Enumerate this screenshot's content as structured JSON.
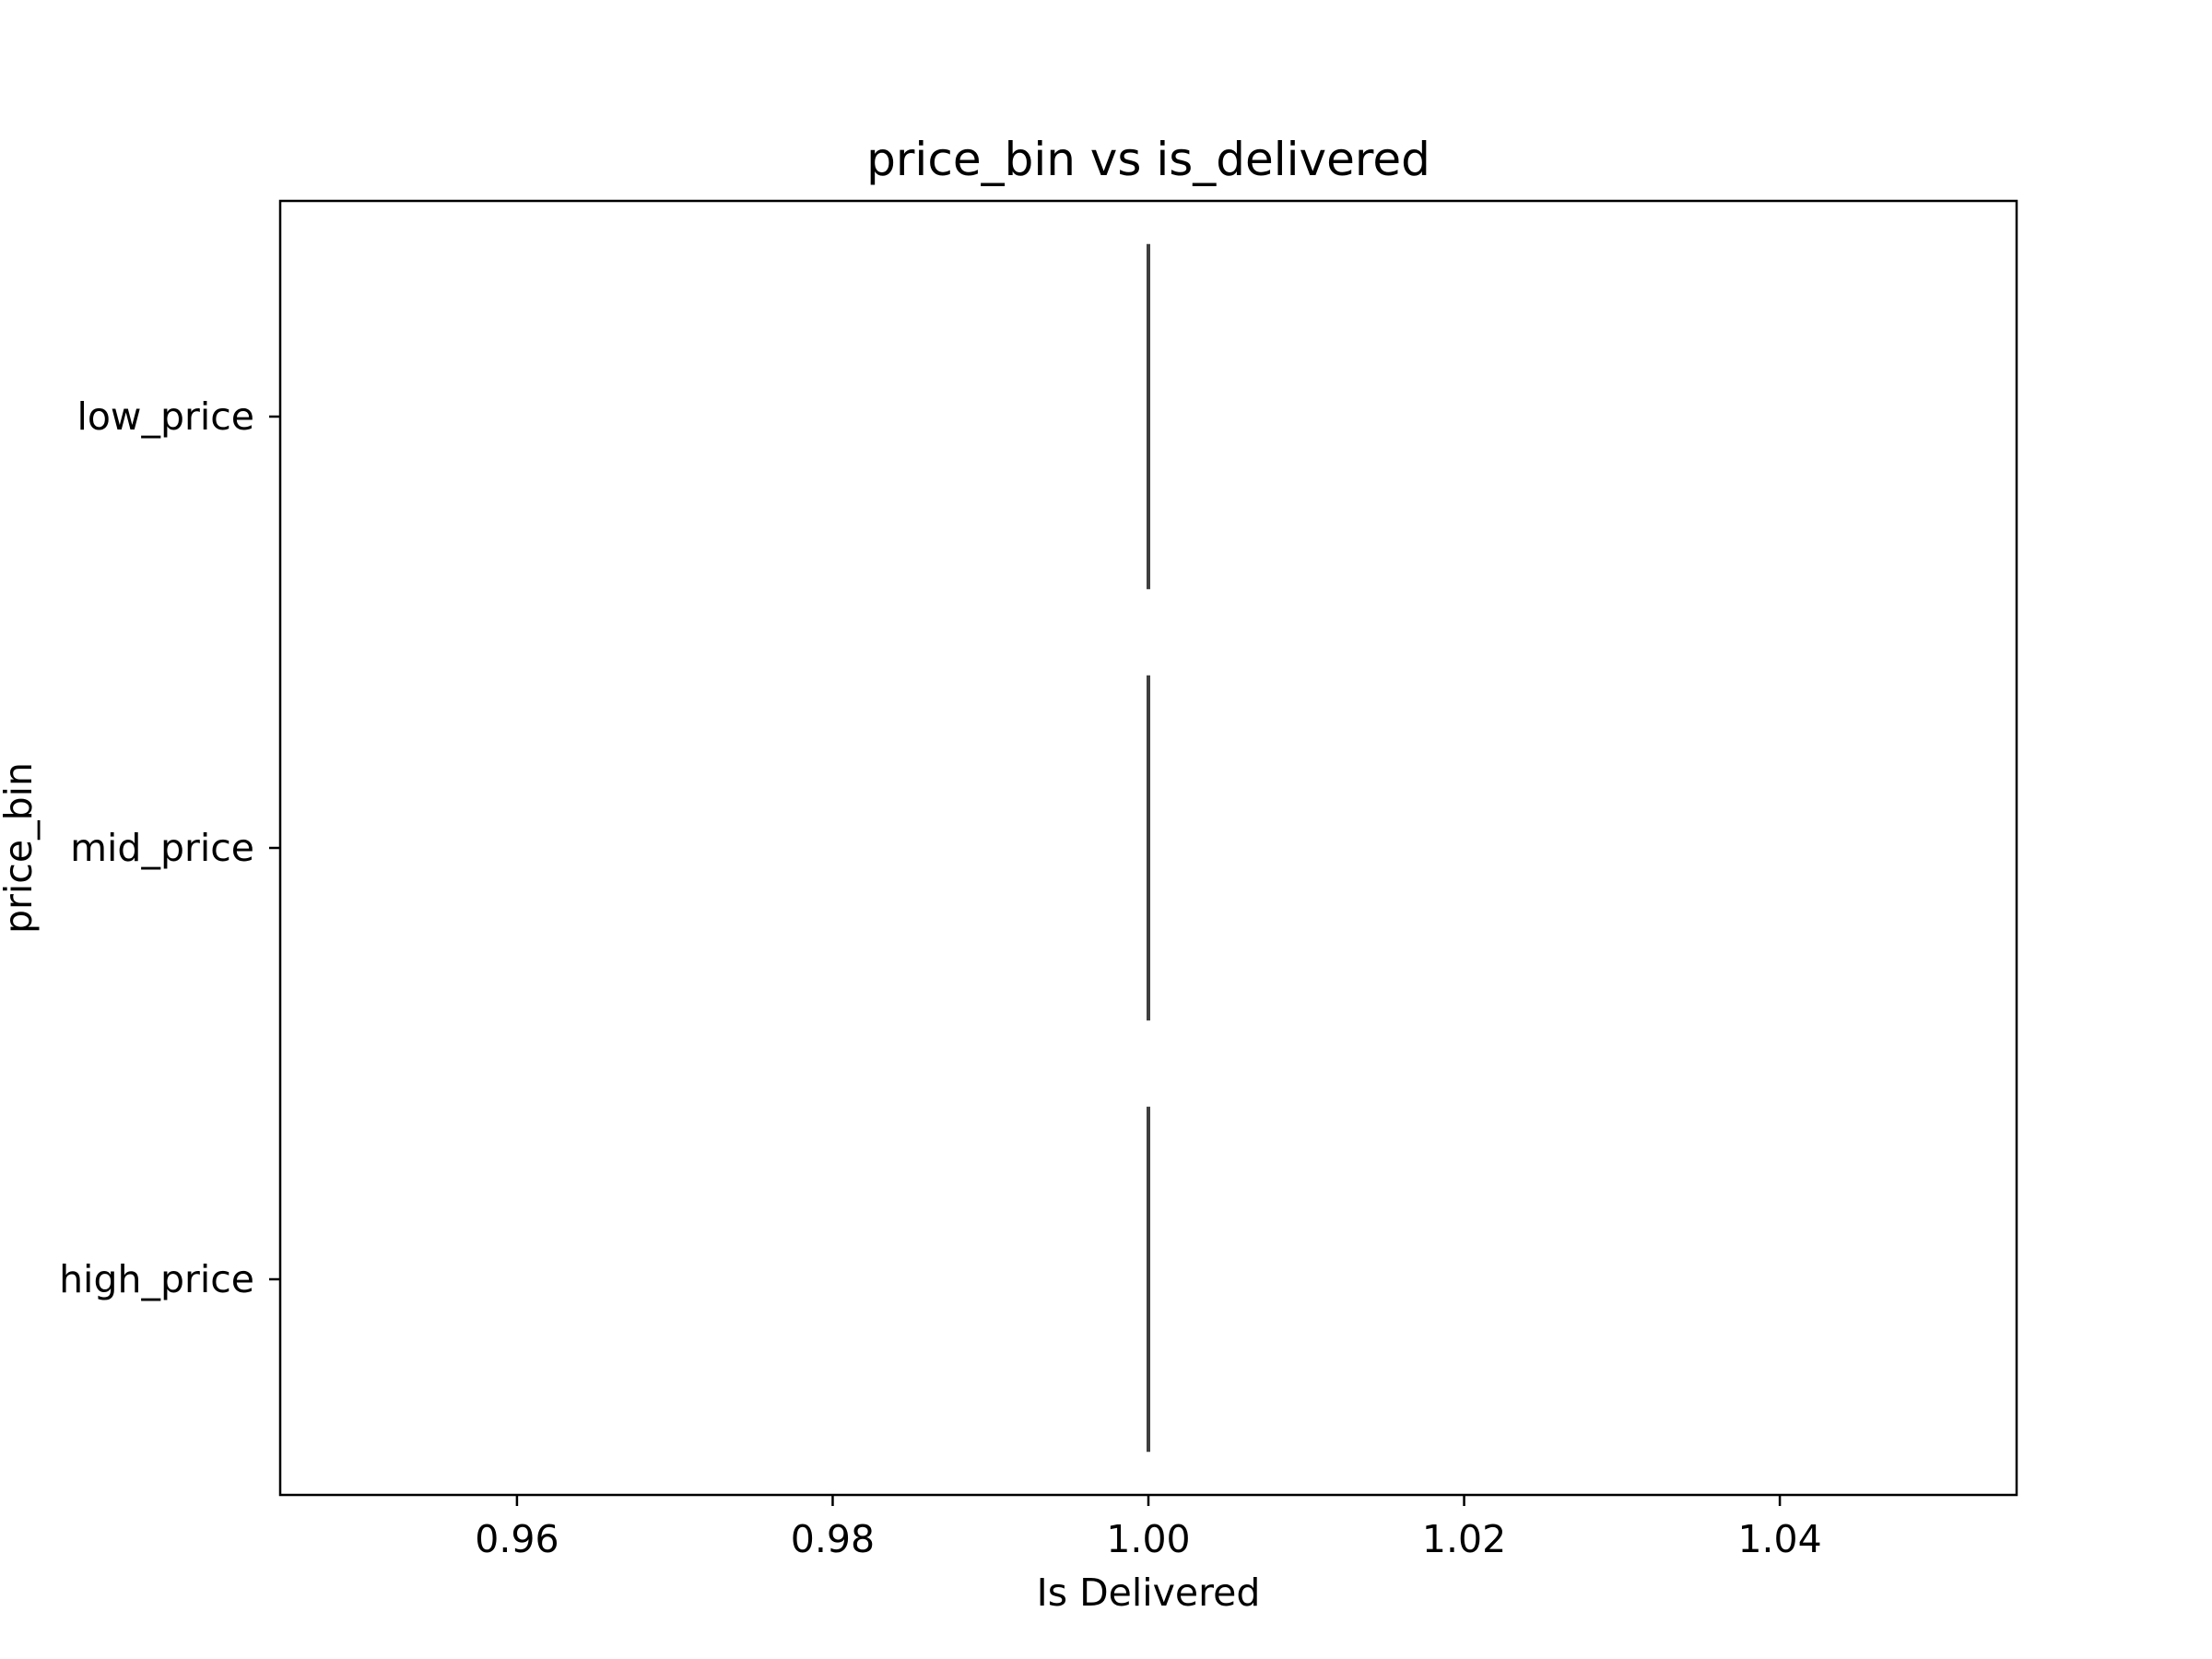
{
  "chart_data": {
    "type": "box",
    "title": "price_bin vs is_delivered",
    "xlabel": "Is Delivered",
    "ylabel": "price_bin",
    "orientation": "horizontal",
    "categories": [
      "low_price",
      "mid_price",
      "high_price"
    ],
    "values": [
      1.0,
      1.0,
      1.0
    ],
    "xlim": [
      0.945,
      1.055
    ],
    "xticks": [
      0.96,
      0.98,
      1.0,
      1.02,
      1.04
    ],
    "xtick_labels": [
      "0.96",
      "0.98",
      "1.00",
      "1.02",
      "1.04"
    ],
    "grid": false,
    "colors": {
      "box_line": "#3f3f3f",
      "axes": "#000000",
      "background": "#ffffff"
    }
  }
}
